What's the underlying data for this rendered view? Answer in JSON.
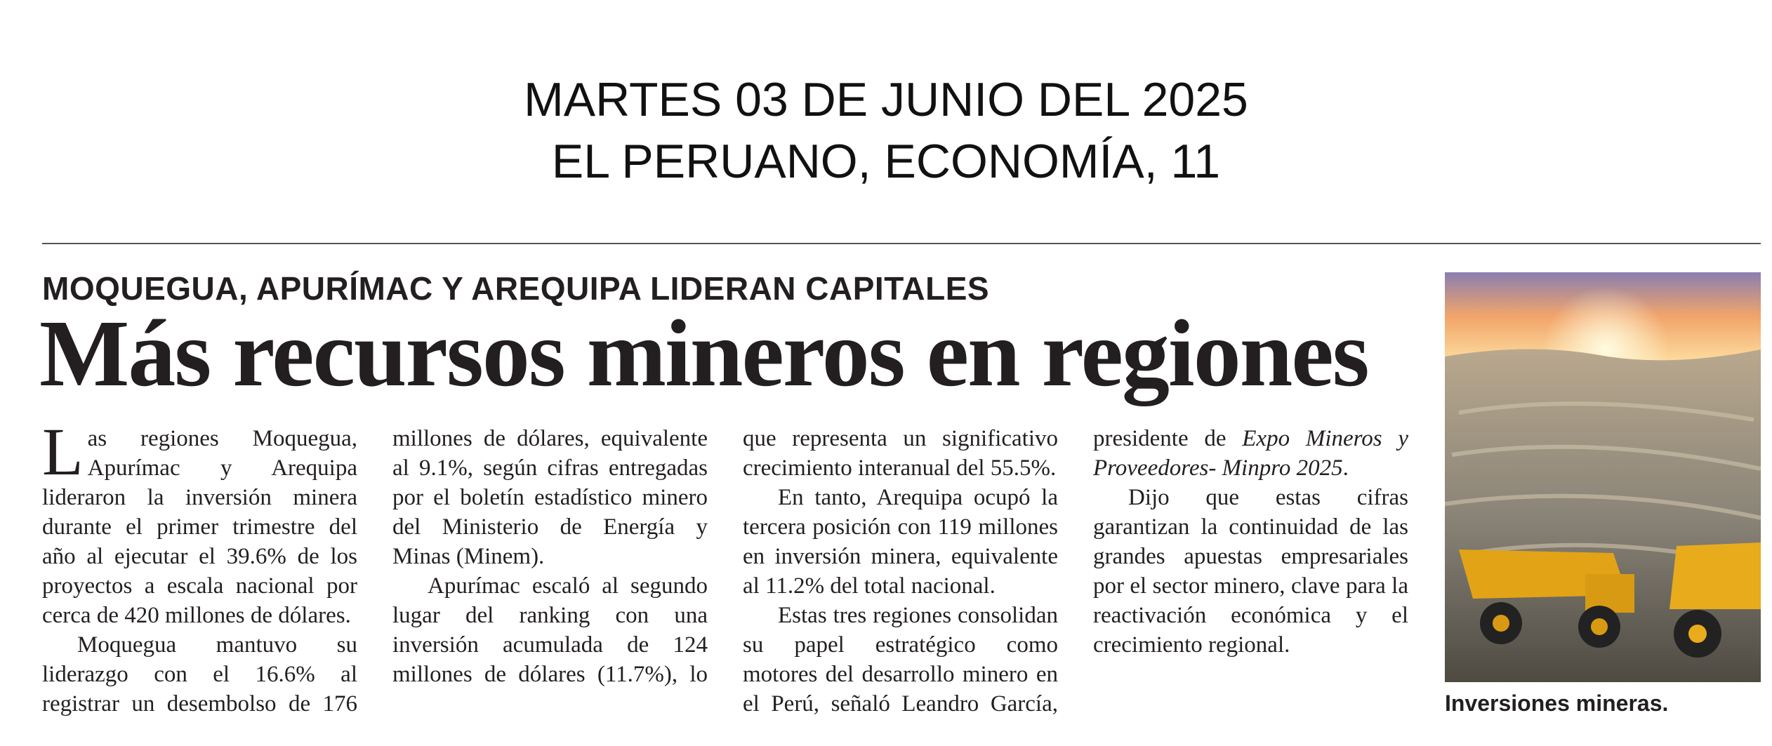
{
  "header": {
    "date": "MARTES 03 DE JUNIO DEL 2025",
    "source": "EL PERUANO, ECONOMÍA, 11"
  },
  "article": {
    "kicker": "MOQUEGUA, APURÍMAC Y AREQUIPA LIDERAN CAPITALES",
    "headline": "Más recursos mineros en regiones",
    "paragraphs": [
      "Las regiones Moquegua, Apurímac y Arequipa lideraron la inversión minera durante el primer trimestre del año al ejecutar el 39.6% de los proyectos a escala nacional por cerca de 420 millones de dólares.",
      "Moquegua mantuvo su liderazgo con el 16.6% al registrar un desembolso de 176 millones de dólares, equivalente al 9.1%, según cifras entregadas por el boletín estadístico minero del Ministerio de Energía y Minas (Minem).",
      "Apurímac escaló al segundo lugar del ranking con una inversión acumulada de 124 millones de dólares (11.7%), lo que representa un significativo crecimiento interanual del 55.5%.",
      "En tanto, Arequipa ocupó la tercera posición con 119 millones en inversión minera, equivalente al 11.2% del total nacional.",
      [
        "Estas tres regiones consolidan su papel estratégico como motores del desarrollo minero en el Perú, señaló Leandro García, presidente de ",
        "Expo Mineros y Proveedores- Minpro 2025",
        "."
      ],
      "Dijo que estas cifras garantizan la continuidad de las grandes apuestas empresariales por el sector minero, clave para la reactivación económica y el crecimiento regional."
    ],
    "photo_caption": "Inversiones mineras."
  }
}
